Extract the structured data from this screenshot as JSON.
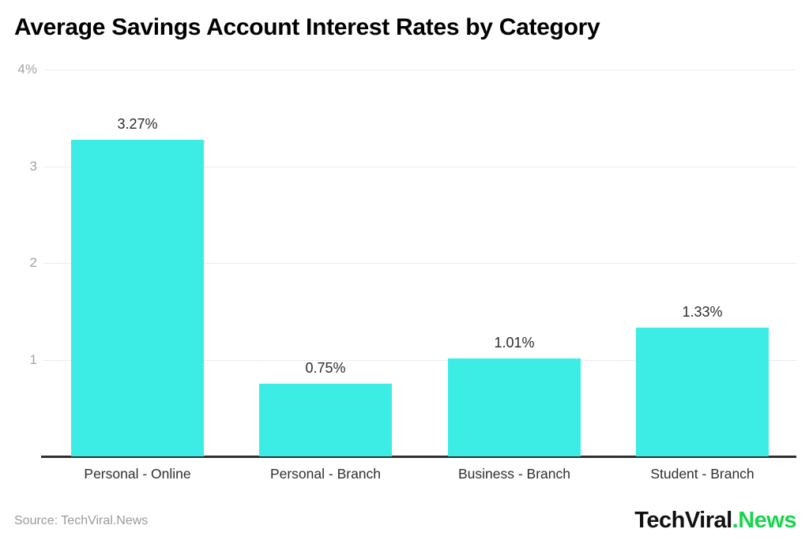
{
  "chart_data": {
    "type": "bar",
    "title": "Average Savings Account Interest Rates by Category",
    "categories": [
      "Personal - Online",
      "Personal - Branch",
      "Business - Branch",
      "Student - Branch"
    ],
    "values": [
      3.27,
      0.75,
      1.01,
      1.33
    ],
    "value_labels": [
      "3.27%",
      "0.75%",
      "1.01%",
      "1.33%"
    ],
    "xlabel": "",
    "ylabel": "",
    "ylim": [
      0,
      4
    ],
    "yticks": [
      {
        "value": 1,
        "label": "1"
      },
      {
        "value": 2,
        "label": "2"
      },
      {
        "value": 3,
        "label": "3"
      },
      {
        "value": 4,
        "label": "4%"
      }
    ],
    "grid": true,
    "legend": false,
    "bar_color": "#3BEDE4"
  },
  "footer": {
    "source": "Source: TechViral.News",
    "logo_primary": "TechViral",
    "logo_accent": ".News",
    "logo_accent_color": "#17D54E"
  }
}
